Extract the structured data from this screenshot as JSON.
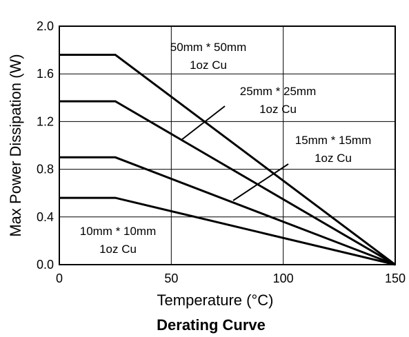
{
  "chart_data": {
    "type": "line",
    "title": "Derating Curve",
    "xlabel": "Temperature (°C)",
    "ylabel": "Max Power Dissipation (W)",
    "xlim": [
      0,
      150
    ],
    "ylim": [
      0,
      2.0
    ],
    "x_ticks": [
      "0",
      "50",
      "100",
      "150"
    ],
    "y_ticks": [
      "0.0",
      "0.4",
      "0.8",
      "1.2",
      "1.6",
      "2.0"
    ],
    "grid": true,
    "legend": "none",
    "series": [
      {
        "name": "50mm * 50mm 1oz Cu",
        "x": [
          0,
          25,
          150
        ],
        "y": [
          1.76,
          1.76,
          0
        ]
      },
      {
        "name": "25mm * 25mm 1oz Cu",
        "x": [
          0,
          25,
          150
        ],
        "y": [
          1.37,
          1.37,
          0
        ]
      },
      {
        "name": "15mm * 15mm 1oz Cu",
        "x": [
          0,
          25,
          150
        ],
        "y": [
          0.9,
          0.9,
          0
        ]
      },
      {
        "name": "10mm * 10mm 1oz Cu",
        "x": [
          0,
          25,
          150
        ],
        "y": [
          0.56,
          0.56,
          0
        ]
      }
    ],
    "annotations": [
      {
        "line1": "50mm * 50mm",
        "line2": "1oz Cu"
      },
      {
        "line1": "25mm * 25mm",
        "line2": "1oz Cu"
      },
      {
        "line1": "15mm * 15mm",
        "line2": "1oz Cu"
      },
      {
        "line1": "10mm * 10mm",
        "line2": "1oz Cu"
      }
    ]
  }
}
